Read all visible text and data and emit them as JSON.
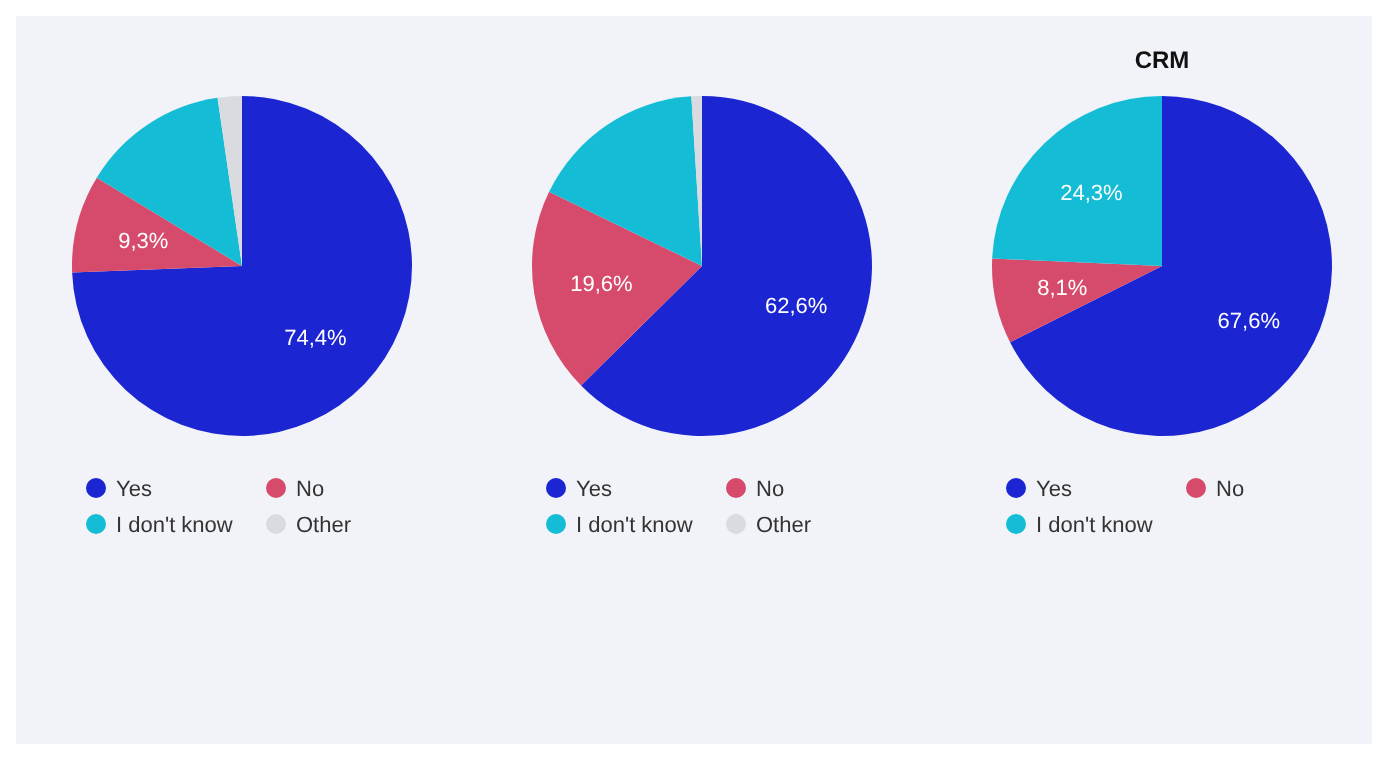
{
  "chart_data": [
    {
      "type": "pie",
      "categories": [
        "Yes",
        "No",
        "I don't know",
        "Other"
      ],
      "values": [
        74.4,
        9.3,
        14.0,
        2.3
      ],
      "value_labels": [
        "74,4%",
        "9,3%",
        null,
        null
      ],
      "colors": [
        "#1b26d2",
        "#d64b6b",
        "#14bdd5",
        "#d9dbe1"
      ],
      "legend": "bottom"
    },
    {
      "type": "pie",
      "categories": [
        "Yes",
        "No",
        "I don't know",
        "Other"
      ],
      "values": [
        62.6,
        19.6,
        16.8,
        1.0
      ],
      "value_labels": [
        "62,6%",
        "19,6%",
        null,
        null
      ],
      "colors": [
        "#1b26d2",
        "#d64b6b",
        "#14bdd5",
        "#d9dbe1"
      ],
      "legend": "bottom"
    },
    {
      "type": "pie",
      "title": "CRM",
      "categories": [
        "Yes",
        "No",
        "I don't know"
      ],
      "values": [
        67.6,
        8.1,
        24.3
      ],
      "value_labels": [
        "67,6%",
        "8,1%",
        "24,3%"
      ],
      "colors": [
        "#1b26d2",
        "#d64b6b",
        "#14bdd5"
      ],
      "legend": "bottom"
    }
  ]
}
